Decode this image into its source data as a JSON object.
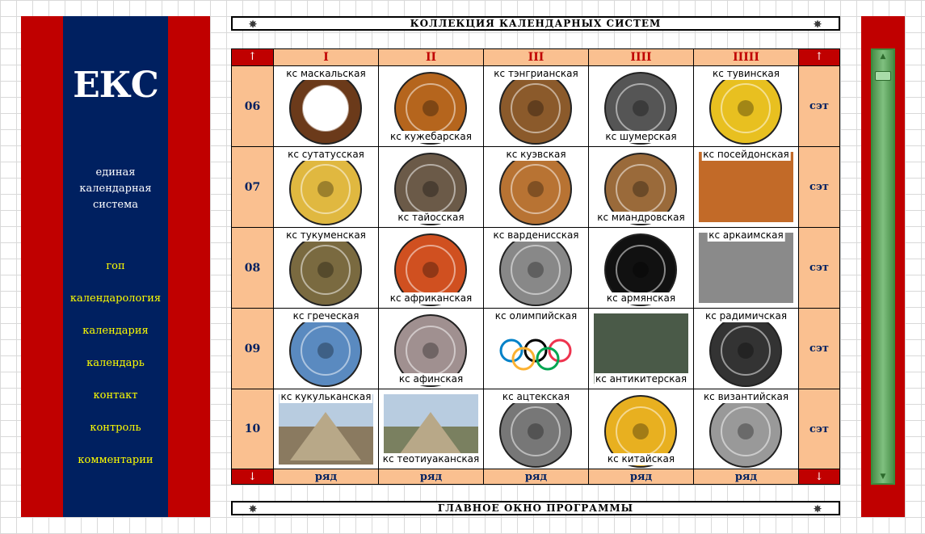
{
  "sidebar": {
    "logo": "ЕКС",
    "tagline": "единая\nкалендарная\nсистема",
    "nav": [
      "гоп",
      "календарология",
      "календария",
      "календарь",
      "контакт",
      "контроль",
      "комментарии"
    ]
  },
  "header": {
    "title": "КОЛЛЕКЦИЯ   КАЛЕНДАРНЫХ   СИСТЕМ"
  },
  "footer": {
    "title": "ГЛАВНОЕ   ОКНО   ПРОГРАММЫ"
  },
  "grid": {
    "arrow_up": "↑",
    "arrow_down": "↓",
    "columns": [
      "I",
      "II",
      "III",
      "IIII",
      "IIIII"
    ],
    "rows": [
      {
        "label": "06",
        "set": "сэт",
        "cells": [
          {
            "caption": "кс маскальская",
            "pos": "top",
            "icon": "ring-disc-icon",
            "color": "#6b3a1a"
          },
          {
            "caption": "кс кужебарская",
            "pos": "bottom",
            "icon": "ornate-disc-icon",
            "color": "#b5651d"
          },
          {
            "caption": "кс тэнгрианская",
            "pos": "top",
            "icon": "zodiac-disc-icon",
            "color": "#8b5a2b"
          },
          {
            "caption": "кс шумерская",
            "pos": "bottom",
            "icon": "star-disc-icon",
            "color": "#555555"
          },
          {
            "caption": "кс тувинская",
            "pos": "top",
            "icon": "zodiac-disc-icon",
            "color": "#e8c020"
          }
        ]
      },
      {
        "label": "07",
        "set": "сэт",
        "cells": [
          {
            "caption": "кс сутатусская",
            "pos": "top",
            "icon": "gold-disc-icon",
            "color": "#e0b840"
          },
          {
            "caption": "кс тайосская",
            "pos": "bottom",
            "icon": "bronze-disc-icon",
            "color": "#6b5a48"
          },
          {
            "caption": "кс куэвская",
            "pos": "top",
            "icon": "copper-disc-icon",
            "color": "#b87333"
          },
          {
            "caption": "кс миандровская",
            "pos": "bottom",
            "icon": "bronze-disc-icon",
            "color": "#9a6a3a"
          },
          {
            "caption": "кс посейдонская",
            "pos": "top",
            "icon": "artifact-photo-icon",
            "color": "#c26a28"
          }
        ]
      },
      {
        "label": "08",
        "set": "сэт",
        "cells": [
          {
            "caption": "кс тукуменская",
            "pos": "top",
            "icon": "landscape-disc-icon",
            "color": "#7a6a40"
          },
          {
            "caption": "кс африканская",
            "pos": "bottom",
            "icon": "sun-disc-icon",
            "color": "#d05020"
          },
          {
            "caption": "кс варденисская",
            "pos": "top",
            "icon": "stone-disc-icon",
            "color": "#888888"
          },
          {
            "caption": "кс армянская",
            "pos": "bottom",
            "icon": "sun-symbol-icon",
            "color": "#111111"
          },
          {
            "caption": "кс аркаимская",
            "pos": "top",
            "icon": "archaeology-photo-icon",
            "color": "#8a8a8a"
          }
        ]
      },
      {
        "label": "09",
        "set": "сэт",
        "cells": [
          {
            "caption": "кс греческая",
            "pos": "top",
            "icon": "mosaic-rosette-icon",
            "color": "#5a8ac0"
          },
          {
            "caption": "кс афинская",
            "pos": "bottom",
            "icon": "stone-disc-icon",
            "color": "#a09090"
          },
          {
            "caption": "кс олимпийская",
            "pos": "top",
            "icon": "olympic-rings-icon",
            "color": "#0081c8"
          },
          {
            "caption": "кс антикитерская",
            "pos": "bottom",
            "icon": "mechanism-photo-icon",
            "color": "#4a5a48"
          },
          {
            "caption": "кс радимичская",
            "pos": "top",
            "icon": "ornate-emblem-icon",
            "color": "#333333"
          }
        ]
      },
      {
        "label": "10",
        "set": "сэт",
        "cells": [
          {
            "caption": "кс кукульканская",
            "pos": "top",
            "icon": "pyramid-photo-icon",
            "color": "#8a7a60"
          },
          {
            "caption": "кс теотиуаканская",
            "pos": "bottom",
            "icon": "pyramid-photo-icon",
            "color": "#7a8060"
          },
          {
            "caption": "кс ацтекская",
            "pos": "top",
            "icon": "aztec-stone-icon",
            "color": "#777777"
          },
          {
            "caption": "кс китайская",
            "pos": "bottom",
            "icon": "chinese-zodiac-icon",
            "color": "#e8b020"
          },
          {
            "caption": "кс византийская",
            "pos": "top",
            "icon": "byzantine-disc-icon",
            "color": "#999999"
          }
        ]
      }
    ],
    "footer_label": "ряд"
  },
  "scrollbar": {
    "up_glyph": "▲",
    "down_glyph": "▼"
  }
}
